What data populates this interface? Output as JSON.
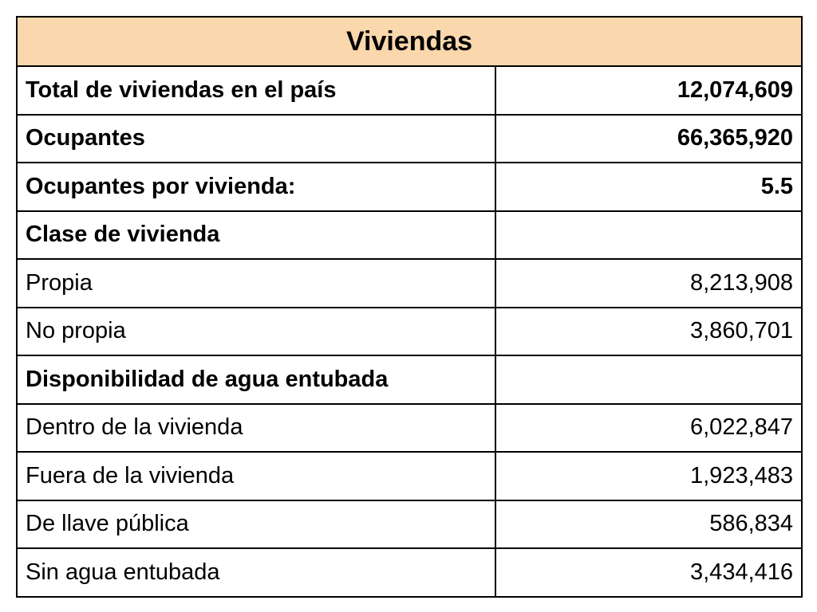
{
  "table": {
    "title": "Viviendas",
    "header_color": "#FAD7AC",
    "rows": [
      {
        "label": "Total de viviendas en el país",
        "value": "12,074,609",
        "bold": true
      },
      {
        "label": "Ocupantes",
        "value": "66,365,920",
        "bold": true
      },
      {
        "label": "Ocupantes por vivienda:",
        "value": "5.5",
        "bold": true
      },
      {
        "label": "Clase de vivienda",
        "value": "",
        "bold": true
      },
      {
        "label": "Propia",
        "value": "8,213,908",
        "bold": false
      },
      {
        "label": "No propia",
        "value": "3,860,701",
        "bold": false
      },
      {
        "label": "Disponibilidad de agua entubada",
        "value": "",
        "bold": true
      },
      {
        "label": "Dentro de la vivienda",
        "value": "6,022,847",
        "bold": false
      },
      {
        "label": "Fuera de la vivienda",
        "value": "1,923,483",
        "bold": false
      },
      {
        "label": "De llave pública",
        "value": "586,834",
        "bold": false
      },
      {
        "label": "Sin agua entubada",
        "value": "3,434,416",
        "bold": false
      }
    ]
  }
}
